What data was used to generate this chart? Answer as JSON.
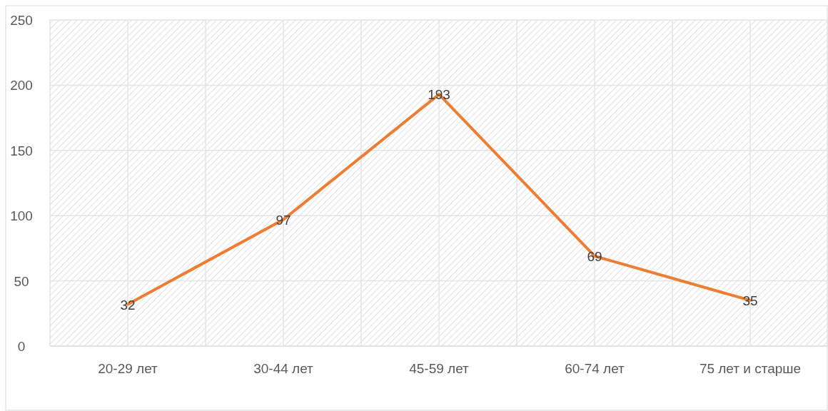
{
  "chart_data": {
    "type": "line",
    "categories": [
      "20-29 лет",
      "30-44 лет",
      "45-59 лет",
      "60-74 лет",
      "75 лет и старше"
    ],
    "series": [
      {
        "color": "#ed7d31",
        "values": [
          32,
          97,
          193,
          69,
          35
        ]
      }
    ],
    "ylim": [
      0,
      250
    ],
    "yticks": [
      0,
      50,
      100,
      150,
      200,
      250
    ],
    "grid": true,
    "data_labels": true,
    "marker": "none",
    "line_style": "solid"
  }
}
